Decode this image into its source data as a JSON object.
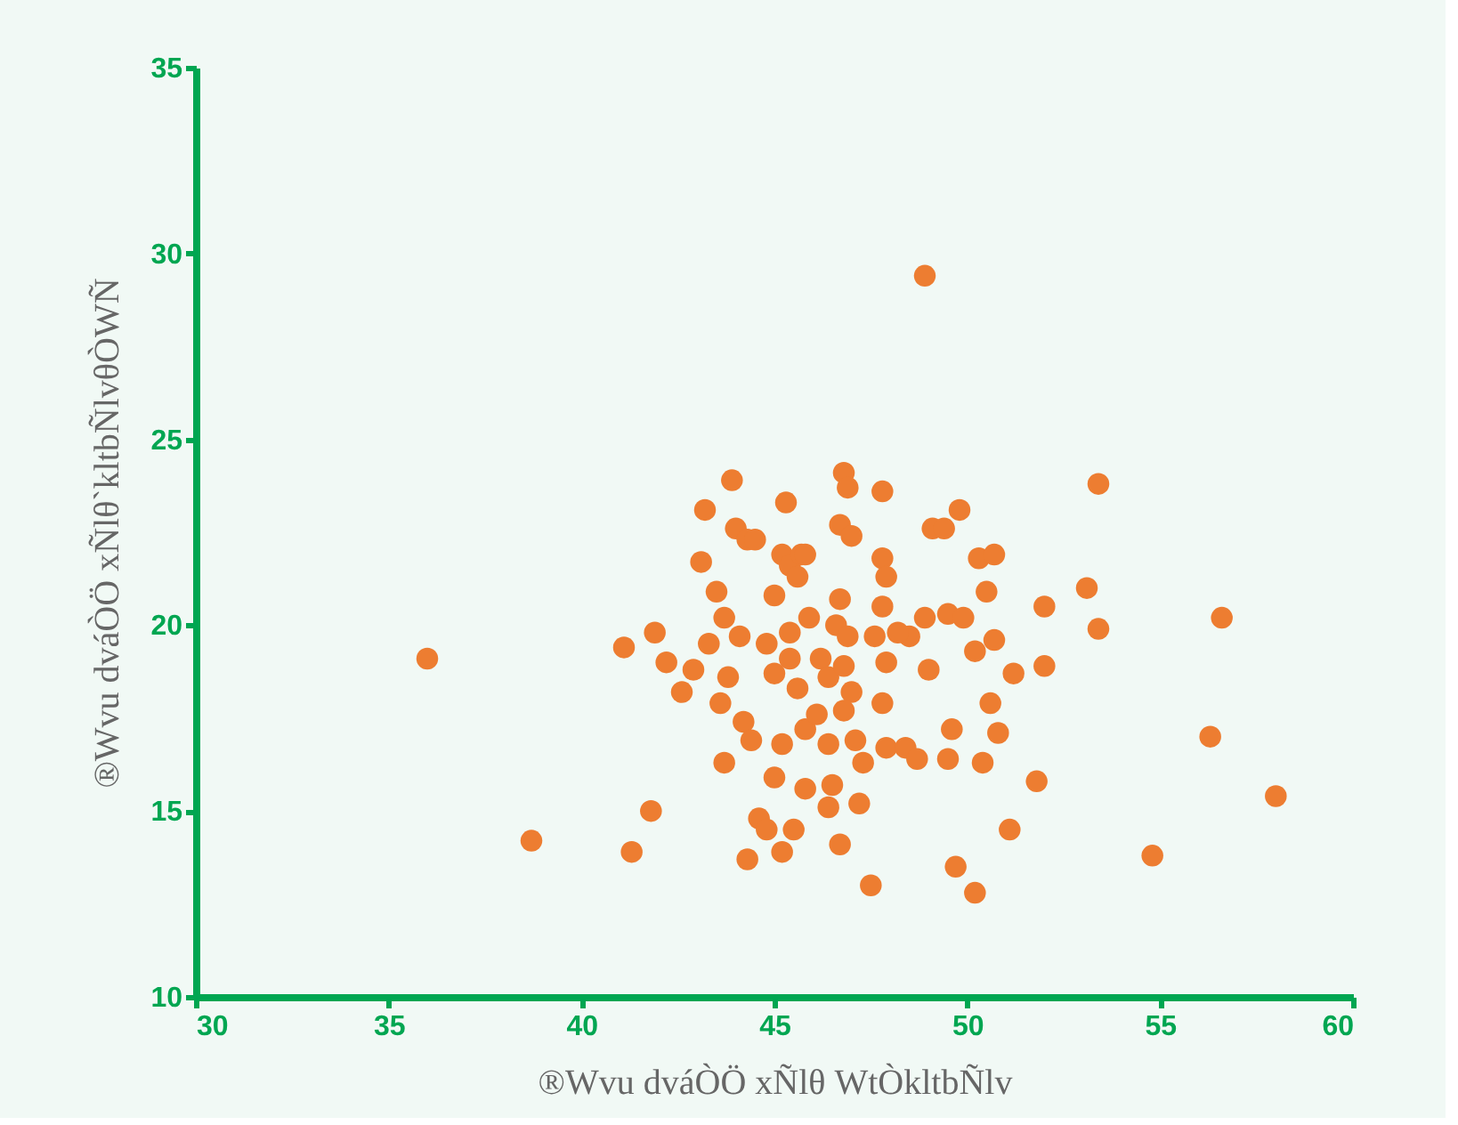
{
  "chart_data": {
    "type": "scatter",
    "xlabel": "®Wvu dváÒÖ xÑlθ WtÒkltbÑlv",
    "ylabel": "®Wvu dváÒÖ xÑlθ`kltbÑlvθÒWÑ",
    "xlim": [
      30,
      60
    ],
    "xticks": [
      30,
      35,
      40,
      45,
      50,
      55,
      60
    ],
    "ylim": [
      10,
      35
    ],
    "yticks": [
      10,
      15,
      20,
      25,
      30,
      35
    ],
    "grid": false,
    "legend": false,
    "marker": "circle",
    "series": [
      {
        "color": "#ed7d31",
        "x": [
          36.0,
          38.7,
          41.3,
          41.8,
          41.1,
          41.9,
          42.2,
          42.6,
          42.9,
          43.2,
          43.1,
          43.9,
          43.5,
          43.7,
          43.3,
          43.8,
          43.6,
          43.7,
          44.0,
          44.3,
          44.5,
          44.1,
          44.2,
          44.4,
          44.6,
          44.8,
          44.3,
          44.8,
          45.0,
          45.2,
          45.0,
          45.3,
          45.2,
          45.4,
          45.7,
          45.6,
          45.0,
          45.4,
          45.4,
          45.6,
          45.8,
          45.8,
          45.5,
          45.2,
          45.8,
          45.9,
          46.2,
          46.4,
          46.1,
          46.4,
          46.5,
          46.4,
          46.7,
          46.8,
          46.9,
          46.7,
          47.0,
          46.7,
          46.6,
          46.9,
          46.8,
          47.0,
          46.8,
          47.1,
          47.3,
          47.2,
          47.5,
          47.8,
          47.8,
          47.9,
          47.8,
          47.6,
          47.9,
          47.8,
          47.9,
          48.4,
          48.5,
          48.2,
          48.9,
          48.9,
          49.0,
          49.1,
          49.4,
          49.8,
          49.5,
          49.9,
          49.6,
          49.5,
          50.2,
          50.3,
          50.7,
          50.5,
          50.7,
          50.6,
          50.8,
          50.4,
          48.7,
          49.7,
          50.2,
          51.1,
          51.2,
          51.8,
          52.0,
          52.0,
          53.1,
          53.4,
          53.4,
          54.8,
          56.3,
          56.6,
          58.0
        ],
        "values": [
          19.1,
          14.2,
          13.9,
          15.0,
          19.4,
          19.8,
          19.0,
          18.2,
          18.8,
          23.1,
          21.7,
          23.9,
          20.9,
          20.2,
          19.5,
          18.6,
          17.9,
          16.3,
          22.6,
          22.3,
          22.3,
          19.7,
          17.4,
          16.9,
          14.8,
          14.5,
          13.7,
          19.5,
          18.7,
          16.8,
          15.9,
          23.3,
          21.9,
          21.6,
          21.9,
          21.3,
          20.8,
          19.8,
          19.1,
          18.3,
          17.2,
          15.6,
          14.5,
          13.9,
          21.9,
          20.2,
          19.1,
          18.6,
          17.6,
          16.8,
          15.7,
          15.1,
          14.1,
          24.1,
          23.7,
          22.7,
          22.4,
          20.7,
          20.0,
          19.7,
          18.9,
          18.2,
          17.7,
          16.9,
          16.3,
          15.2,
          13.0,
          23.6,
          21.8,
          21.3,
          20.5,
          19.7,
          19.0,
          17.9,
          16.7,
          16.7,
          19.7,
          19.8,
          29.4,
          20.2,
          18.8,
          22.6,
          22.6,
          23.1,
          20.3,
          20.2,
          17.2,
          16.4,
          19.3,
          21.8,
          21.9,
          20.9,
          19.6,
          17.9,
          17.1,
          16.3,
          16.4,
          13.5,
          12.8,
          14.5,
          18.7,
          15.8,
          20.5,
          18.9,
          21.0,
          23.8,
          19.9,
          13.8,
          17.0,
          20.2,
          15.4
        ]
      }
    ]
  }
}
